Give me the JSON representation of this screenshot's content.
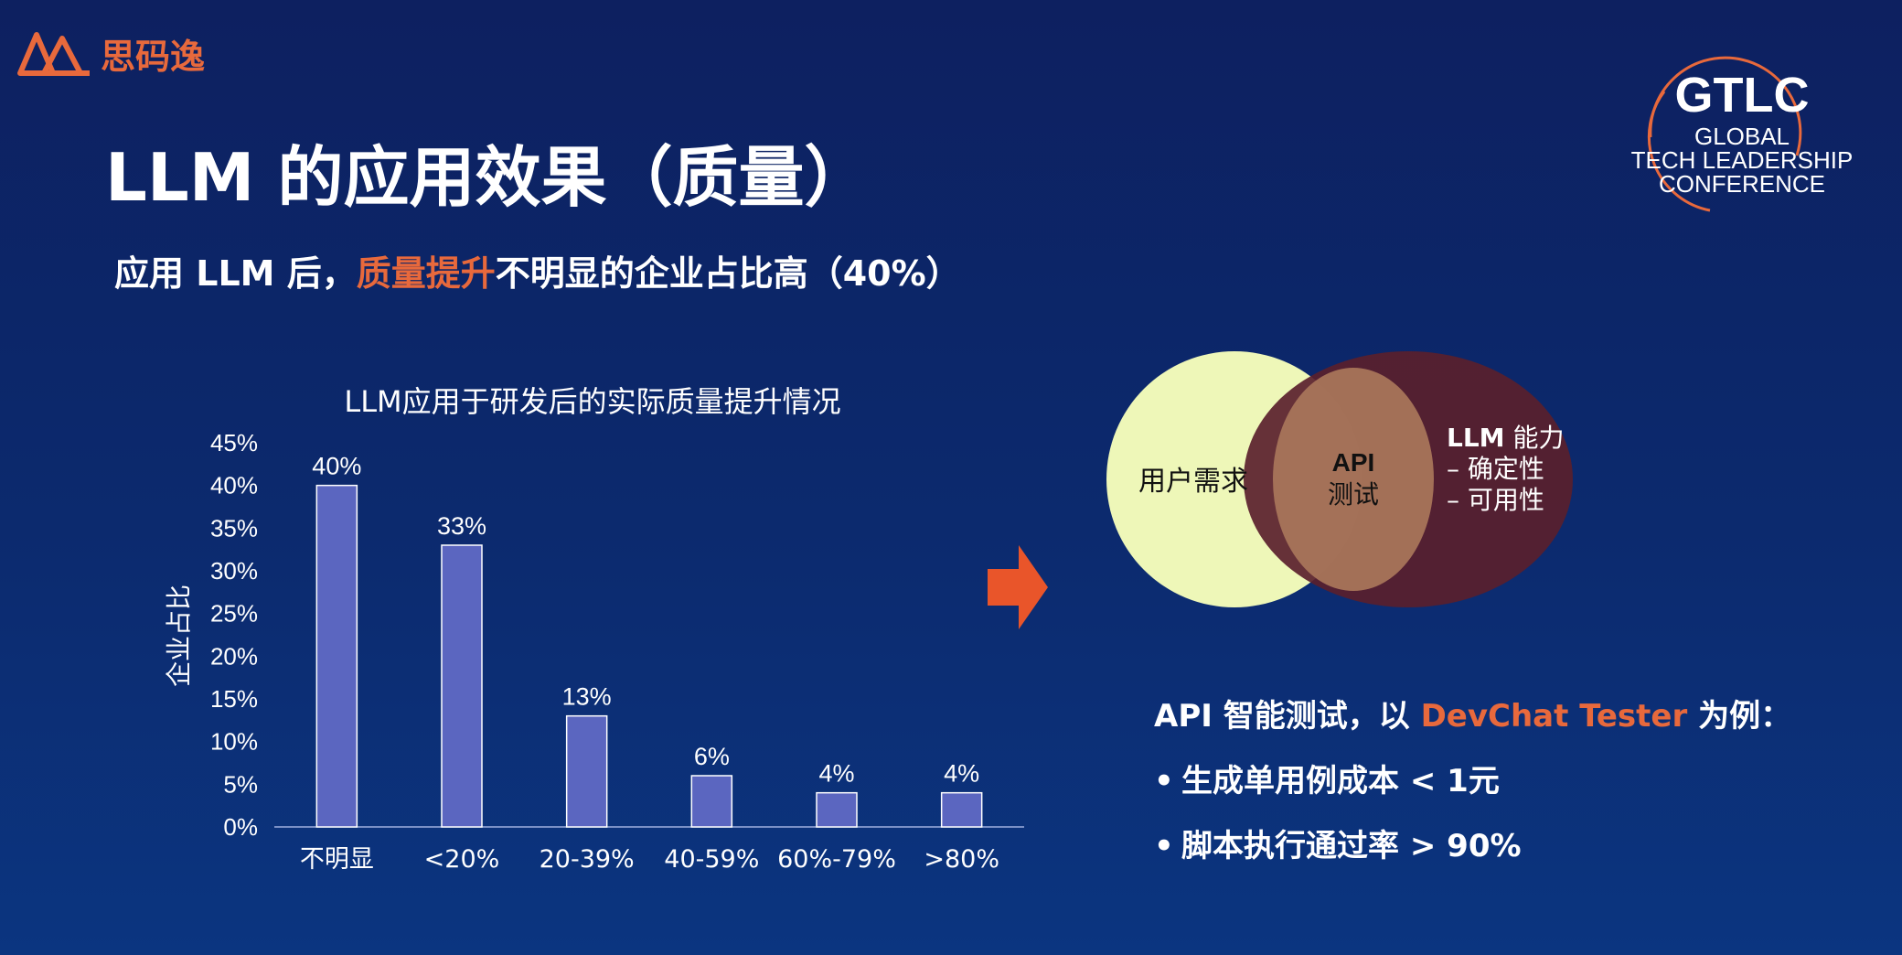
{
  "brand": {
    "name": "思码逸",
    "color": "#e8693c"
  },
  "conference_logo": {
    "abbr": "GTLC",
    "line1": "GLOBAL",
    "line2": "TECH LEADERSHIP",
    "line3": "CONFERENCE"
  },
  "slide": {
    "title": "LLM 的应用效果（质量）",
    "subtitle_prefix": "应用 LLM 后，",
    "subtitle_highlight": "质量提升",
    "subtitle_suffix": "不明显的企业占比高（40%）"
  },
  "chart_data": {
    "type": "bar",
    "title": "LLM应用于研发后的实际质量提升情况",
    "xlabel": "",
    "ylabel": "企业占比",
    "categories": [
      "不明显",
      "<20%",
      "20-39%",
      "40-59%",
      "60%-79%",
      ">80%"
    ],
    "values": [
      40,
      33,
      13,
      6,
      4,
      4
    ],
    "value_labels": [
      "40%",
      "33%",
      "13%",
      "6%",
      "4%",
      "4%"
    ],
    "ylim": [
      0,
      45
    ],
    "yticks": [
      "0%",
      "5%",
      "10%",
      "15%",
      "20%",
      "25%",
      "30%",
      "35%",
      "40%",
      "45%"
    ],
    "grid": false,
    "bar_color": "#5b66c0"
  },
  "venn": {
    "left_label": "用户需求",
    "center_line1": "API",
    "center_line2": "测试",
    "right_title_bold": "LLM",
    "right_title_rest": " 能力",
    "right_item1": "– 确定性",
    "right_item2": "– 可用性",
    "left_color": "#eef7b8",
    "right_color": "#5a1f2c"
  },
  "api_section": {
    "heading_prefix": "API 智能测试，以 ",
    "heading_highlight": "DevChat Tester",
    "heading_suffix": " 为例：",
    "bullet1": "生成单用例成本 < 1元",
    "bullet2": "脚本执行通过率 > 90%"
  },
  "colors": {
    "accent": "#e8693c",
    "arrow": "#e9552a"
  }
}
